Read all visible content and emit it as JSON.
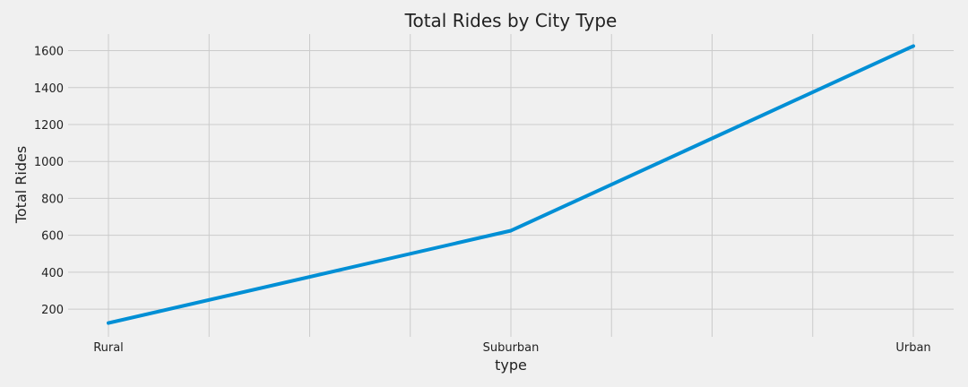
{
  "chart_data": {
    "type": "line",
    "title": "Total Rides by City Type",
    "xlabel": "type",
    "ylabel": "Total Rides",
    "categories": [
      "Rural",
      "Suburban",
      "Urban"
    ],
    "series": [
      {
        "values": [
          125,
          625,
          1625
        ]
      }
    ],
    "ylim": [
      50,
      1690
    ],
    "yticks": [
      200,
      400,
      600,
      800,
      1000,
      1200,
      1400,
      1600
    ],
    "grid": true,
    "legend": "none",
    "colors": {
      "background": "#f0f0f0",
      "grid": "#cbcbcb",
      "line": "#008fd5",
      "text": "#222222"
    }
  }
}
